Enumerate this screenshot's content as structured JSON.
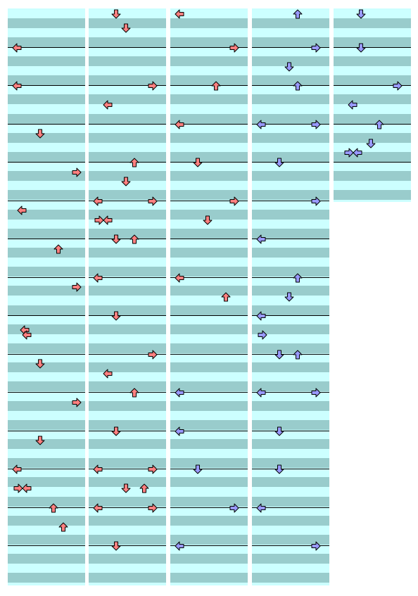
{
  "colors": {
    "light": "#ccffff",
    "dark": "#99cccc",
    "line": "#000000",
    "red_arrow": "#ff8080",
    "blue_arrow": "#9999ff",
    "arrow_outline": "#000000"
  },
  "legend": {
    "L": "left-arrow",
    "D": "down-arrow",
    "U": "up-arrow",
    "R": "right-arrow"
  },
  "columns": [
    {
      "measures": 15,
      "notes": [
        [
          "r",
          "L",
          1,
          0
        ],
        [
          "r",
          "L",
          2,
          0
        ],
        [
          "r",
          "D",
          3,
          0.5
        ],
        [
          "r",
          "R",
          4,
          0.5
        ],
        [
          "r",
          "L",
          5,
          0.5
        ],
        [
          "r",
          "U",
          6,
          0.5
        ],
        [
          "r",
          "R",
          7,
          0.5
        ],
        [
          "r",
          "L",
          8,
          0.75
        ],
        [
          "r",
          "L",
          8,
          1
        ],
        [
          "r",
          "D",
          9,
          0.5
        ],
        [
          "r",
          "R",
          10,
          0.5
        ],
        [
          "r",
          "D",
          11,
          0.5
        ],
        [
          "r",
          "L",
          12,
          0
        ],
        [
          "r",
          "L",
          12,
          1
        ],
        [
          "r",
          "R",
          12,
          1
        ],
        [
          "r",
          "U",
          13,
          0
        ],
        [
          "r",
          "U",
          13,
          1
        ]
      ]
    },
    {
      "measures": 15,
      "notes": [
        [
          "r",
          "D",
          0,
          0
        ],
        [
          "r",
          "D",
          0,
          1
        ],
        [
          "r",
          "R",
          2,
          0
        ],
        [
          "r",
          "L",
          2,
          1
        ],
        [
          "r",
          "U",
          4,
          0
        ],
        [
          "r",
          "D",
          4,
          1
        ],
        [
          "r",
          "L",
          5,
          0
        ],
        [
          "r",
          "R",
          5,
          0
        ],
        [
          "r",
          "L",
          5,
          1
        ],
        [
          "r",
          "R",
          5,
          1
        ],
        [
          "r",
          "D",
          6,
          0
        ],
        [
          "r",
          "U",
          6,
          0
        ],
        [
          "r",
          "L",
          7,
          0
        ],
        [
          "r",
          "D",
          8,
          0
        ],
        [
          "r",
          "R",
          9,
          0
        ],
        [
          "r",
          "L",
          9,
          1
        ],
        [
          "r",
          "U",
          10,
          0
        ],
        [
          "r",
          "D",
          11,
          0
        ],
        [
          "r",
          "L",
          12,
          0
        ],
        [
          "r",
          "R",
          12,
          0
        ],
        [
          "r",
          "D",
          12,
          1
        ],
        [
          "r",
          "U",
          12,
          1
        ],
        [
          "r",
          "L",
          13,
          0
        ],
        [
          "r",
          "R",
          13,
          0
        ],
        [
          "r",
          "D",
          14,
          0
        ]
      ]
    },
    {
      "measures": 15,
      "notes": [
        [
          "r",
          "L",
          0,
          0
        ],
        [
          "r",
          "R",
          1,
          0
        ],
        [
          "r",
          "U",
          2,
          0
        ],
        [
          "r",
          "L",
          3,
          0
        ],
        [
          "r",
          "D",
          4,
          0
        ],
        [
          "r",
          "R",
          5,
          0
        ],
        [
          "r",
          "D",
          5,
          1
        ],
        [
          "r",
          "L",
          7,
          0
        ],
        [
          "r",
          "U",
          7,
          1
        ],
        [
          "b",
          "L",
          10,
          0
        ],
        [
          "b",
          "L",
          11,
          0
        ],
        [
          "b",
          "D",
          12,
          0
        ],
        [
          "b",
          "R",
          13,
          0
        ],
        [
          "b",
          "L",
          14,
          0
        ]
      ]
    },
    {
      "measures": 15,
      "notes": [
        [
          "b",
          "U",
          0,
          0
        ],
        [
          "b",
          "R",
          1,
          0
        ],
        [
          "b",
          "D",
          1,
          1
        ],
        [
          "b",
          "U",
          2,
          0
        ],
        [
          "b",
          "L",
          3,
          0
        ],
        [
          "b",
          "R",
          3,
          0
        ],
        [
          "b",
          "D",
          4,
          0
        ],
        [
          "b",
          "R",
          5,
          0
        ],
        [
          "b",
          "L",
          6,
          0
        ],
        [
          "b",
          "U",
          7,
          0
        ],
        [
          "b",
          "D",
          7,
          1
        ],
        [
          "b",
          "L",
          8,
          0
        ],
        [
          "b",
          "R",
          8,
          1
        ],
        [
          "b",
          "D",
          9,
          0
        ],
        [
          "b",
          "U",
          9,
          0
        ],
        [
          "b",
          "L",
          10,
          0
        ],
        [
          "b",
          "R",
          10,
          0
        ],
        [
          "b",
          "D",
          11,
          0
        ],
        [
          "b",
          "D",
          12,
          0
        ],
        [
          "b",
          "L",
          13,
          0
        ],
        [
          "b",
          "R",
          14,
          0
        ]
      ]
    },
    {
      "measures": 5,
      "notes": [
        [
          "b",
          "D",
          0,
          0
        ],
        [
          "b",
          "D",
          1,
          0
        ],
        [
          "b",
          "R",
          2,
          0
        ],
        [
          "b",
          "L",
          2,
          1
        ],
        [
          "b",
          "U",
          3,
          0
        ],
        [
          "b",
          "D",
          3,
          1
        ],
        [
          "b",
          "L",
          3,
          1.5
        ],
        [
          "b",
          "R",
          3,
          1.5
        ]
      ]
    }
  ]
}
